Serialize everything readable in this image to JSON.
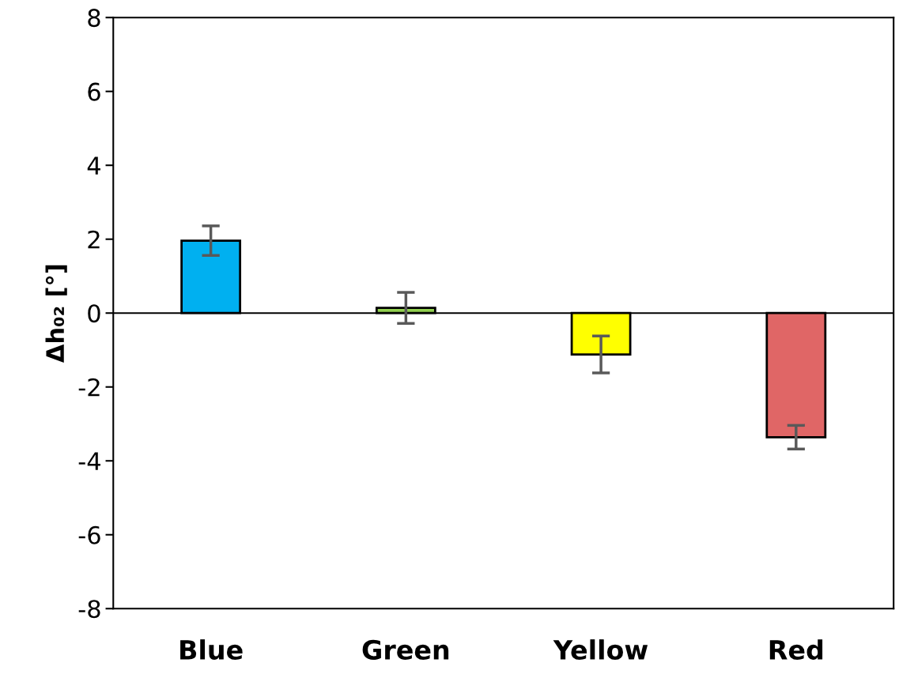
{
  "chart_data": {
    "type": "bar",
    "ylabel": "Δh₀₂ [°]",
    "categories": [
      "Blue",
      "Green",
      "Yellow",
      "Red"
    ],
    "values": [
      1.96,
      0.14,
      -1.12,
      -3.36
    ],
    "colors": [
      "#00b0f0",
      "#92d050",
      "#ffff00",
      "#e06666"
    ],
    "errors": [
      0.4,
      0.42,
      0.5,
      0.32
    ],
    "ylim": [
      -8,
      8
    ],
    "yticks": [
      -8,
      -6,
      -4,
      -2,
      0,
      2,
      4,
      6,
      8
    ],
    "ref_lines": [
      {
        "axis": "y",
        "value": 0,
        "color": "#000000"
      }
    ],
    "grid": false,
    "legend": false
  }
}
